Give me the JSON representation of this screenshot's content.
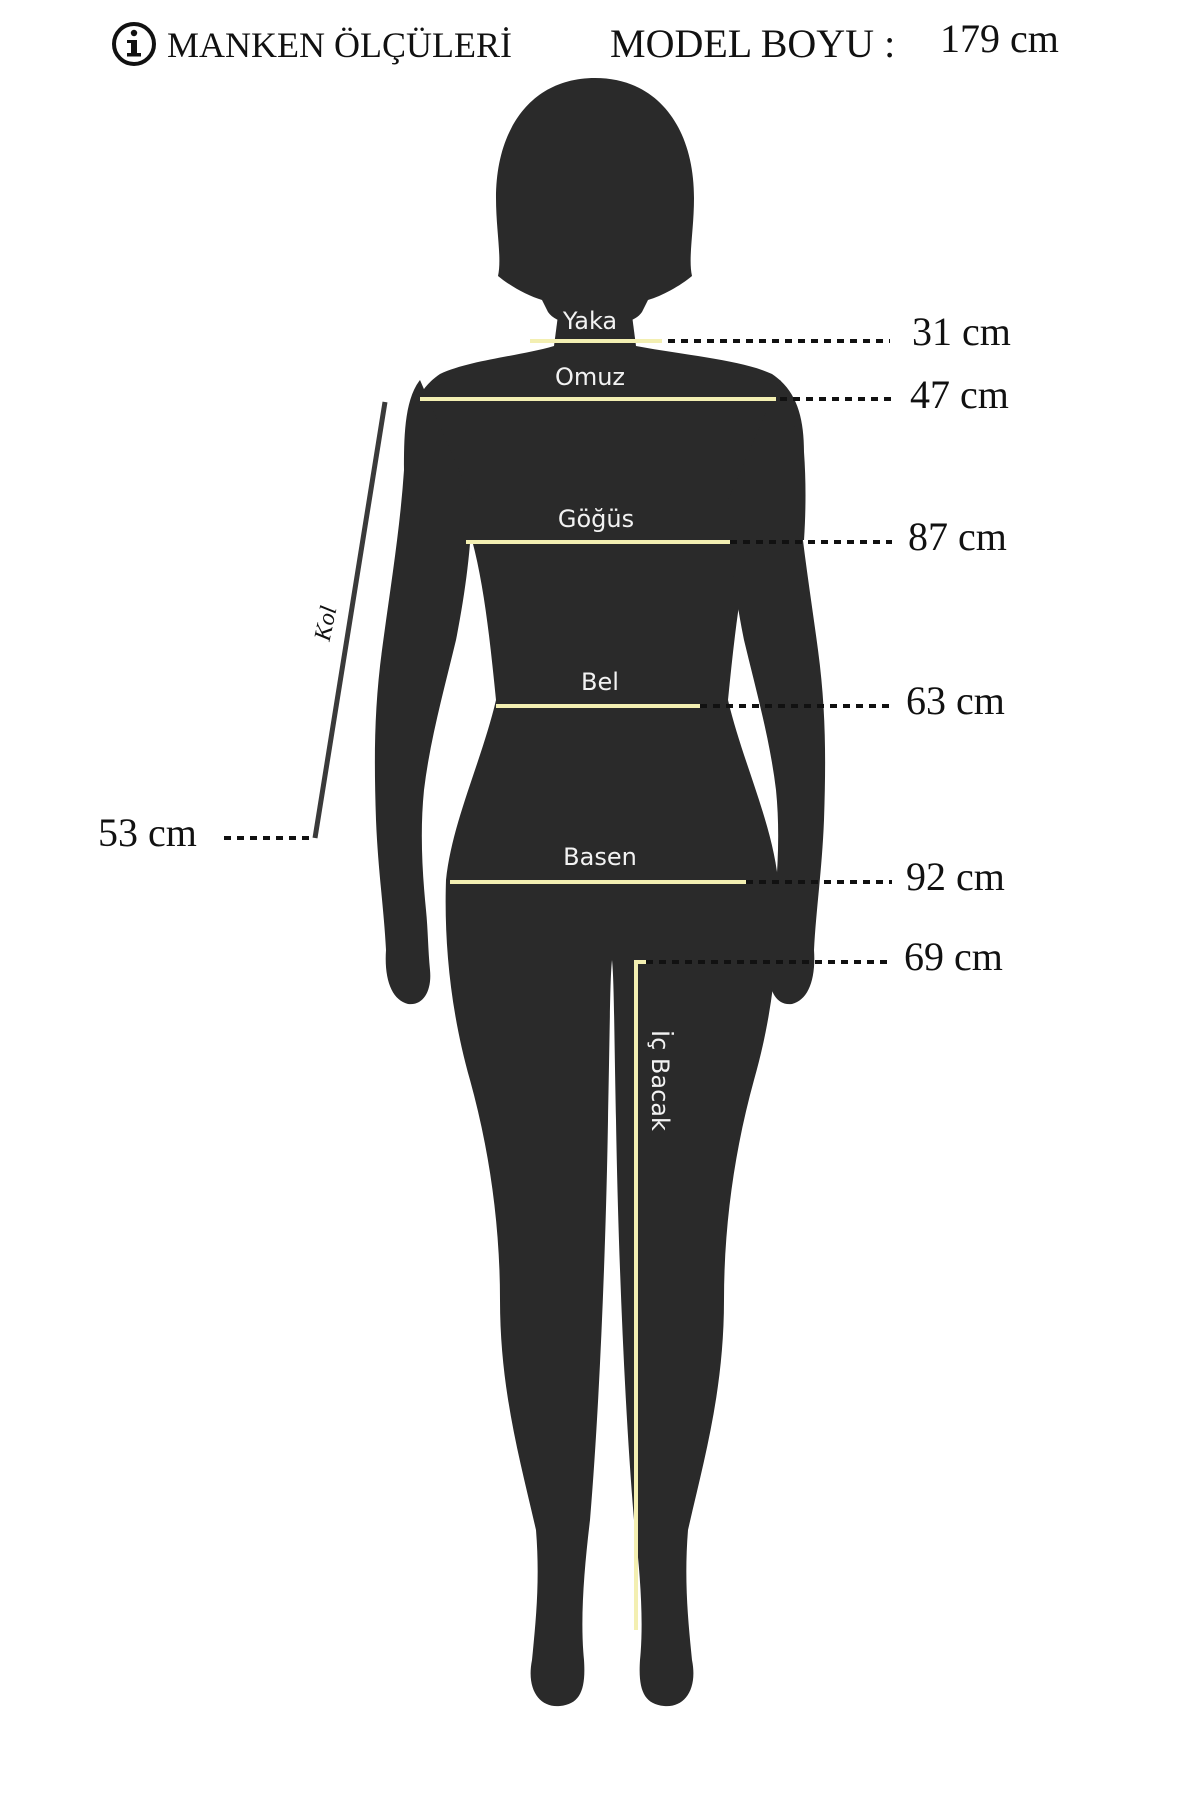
{
  "header": {
    "info_icon": "info-circle-icon",
    "title": "MANKEN ÖLÇÜLERİ",
    "model_height_label": "MODEL BOYU :",
    "model_height_value": "179 cm"
  },
  "measurements": {
    "yaka": {
      "label": "Yaka",
      "value": "31 cm"
    },
    "omuz": {
      "label": "Omuz",
      "value": "47 cm"
    },
    "gogus": {
      "label": "Göğüs",
      "value": "87 cm"
    },
    "bel": {
      "label": "Bel",
      "value": "63 cm"
    },
    "basen": {
      "label": "Basen",
      "value": "92 cm"
    },
    "ic_bacak": {
      "label": "İç Bacak",
      "value": "69 cm"
    },
    "kol": {
      "label": "Kol",
      "value": "53 cm"
    }
  },
  "colors": {
    "silhouette": "#2a2a2a",
    "measure_line": "#f3efb2",
    "kol_line": "#3a3a3a",
    "text": "#111111",
    "label_text": "#f2f2f2"
  }
}
